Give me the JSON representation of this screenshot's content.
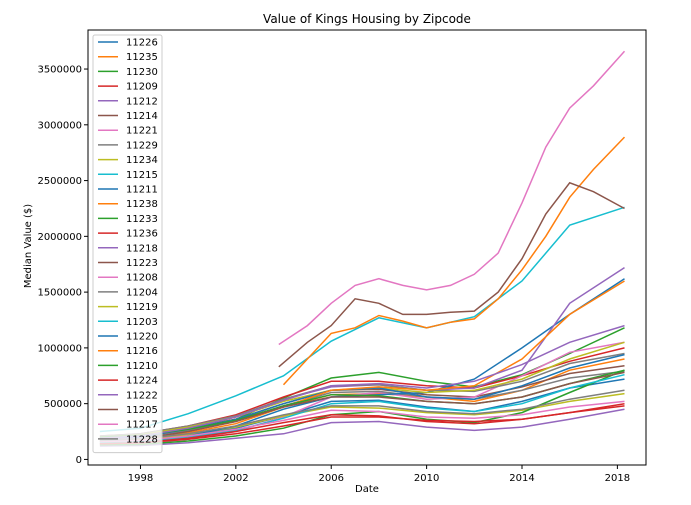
{
  "chart_data": {
    "type": "line",
    "title": "Value of Kings Housing by Zipcode",
    "xlabel": "Date",
    "ylabel": "Median Value ($)",
    "xlim": [
      1995.8,
      2019.2
    ],
    "ylim": [
      -50000,
      3850000
    ],
    "x_ticks": [
      1998,
      2002,
      2006,
      2010,
      2014,
      2018
    ],
    "y_ticks": [
      0,
      500000,
      1000000,
      1500000,
      2000000,
      2500000,
      3000000,
      3500000
    ],
    "legend_position": "upper-left",
    "grid": false,
    "series": [
      {
        "name": "11226",
        "color": "#1f77b4",
        "x": [
          1996.3,
          1998,
          2000,
          2002,
          2004,
          2006,
          2008,
          2010,
          2012,
          2014,
          2016,
          2018.3
        ],
        "y": [
          160000,
          165000,
          210000,
          280000,
          390000,
          520000,
          530000,
          470000,
          430000,
          520000,
          640000,
          720000
        ]
      },
      {
        "name": "11235",
        "color": "#ff7f0e",
        "x": [
          1996.3,
          1998,
          2000,
          2002,
          2004,
          2006,
          2008,
          2010,
          2012,
          2014,
          2016,
          2018.3
        ],
        "y": [
          190000,
          210000,
          290000,
          360000,
          470000,
          580000,
          590000,
          560000,
          520000,
          620000,
          800000,
          900000
        ]
      },
      {
        "name": "11230",
        "color": "#2ca02c",
        "x": [
          1996.3,
          1998,
          2000,
          2002,
          2004,
          2006,
          2008,
          2010,
          2012,
          2014,
          2016,
          2018.3
        ],
        "y": [
          190000,
          210000,
          280000,
          360000,
          550000,
          730000,
          780000,
          700000,
          650000,
          760000,
          950000,
          1180000
        ]
      },
      {
        "name": "11209",
        "color": "#d62728",
        "x": [
          1996.3,
          1998,
          2000,
          2002,
          2004,
          2006,
          2008,
          2010,
          2012,
          2014,
          2016,
          2018.3
        ],
        "y": [
          210000,
          230000,
          300000,
          400000,
          560000,
          700000,
          700000,
          660000,
          640000,
          750000,
          880000,
          1000000
        ]
      },
      {
        "name": "11212",
        "color": "#9467bd",
        "x": [
          1996.3,
          1998,
          2000,
          2002,
          2004,
          2006,
          2008,
          2010,
          2012,
          2014,
          2016,
          2018.3
        ],
        "y": [
          120000,
          125000,
          150000,
          190000,
          230000,
          330000,
          340000,
          290000,
          260000,
          290000,
          360000,
          450000
        ]
      },
      {
        "name": "11214",
        "color": "#8c564b",
        "x": [
          1996.3,
          1998,
          2000,
          2002,
          2004,
          2006,
          2008,
          2010,
          2012,
          2014,
          2016,
          2018.3
        ],
        "y": [
          190000,
          205000,
          270000,
          360000,
          500000,
          620000,
          630000,
          580000,
          560000,
          650000,
          770000,
          840000
        ]
      },
      {
        "name": "11221",
        "color": "#e377c2",
        "x": [
          1996.3,
          1998,
          2000,
          2002,
          2004,
          2006,
          2008,
          2010,
          2012,
          2014,
          2016,
          2018.3
        ],
        "y": [
          130000,
          140000,
          180000,
          250000,
          380000,
          560000,
          600000,
          540000,
          560000,
          750000,
          960000,
          1050000
        ]
      },
      {
        "name": "11229",
        "color": "#7f7f7f",
        "x": [
          1996.3,
          1998,
          2000,
          2002,
          2004,
          2006,
          2008,
          2010,
          2012,
          2014,
          2016,
          2018.3
        ],
        "y": [
          180000,
          200000,
          260000,
          340000,
          480000,
          600000,
          610000,
          560000,
          540000,
          620000,
          730000,
          790000
        ]
      },
      {
        "name": "11234",
        "color": "#bcbd22",
        "x": [
          1996.3,
          1998,
          2000,
          2002,
          2004,
          2006,
          2008,
          2010,
          2012,
          2014,
          2016,
          2018.3
        ],
        "y": [
          160000,
          175000,
          220000,
          290000,
          390000,
          470000,
          460000,
          420000,
          400000,
          440000,
          520000,
          590000
        ]
      },
      {
        "name": "11215",
        "color": "#17becf",
        "x": [
          1996.3,
          1998,
          2000,
          2002,
          2004,
          2006,
          2008,
          2010,
          2012,
          2014,
          2016,
          2018.3
        ],
        "y": [
          250000,
          280000,
          410000,
          570000,
          750000,
          1060000,
          1270000,
          1180000,
          1280000,
          1600000,
          2100000,
          2260000
        ]
      },
      {
        "name": "11211",
        "color": "#1f77b4",
        "x": [
          1996.3,
          1998,
          2000,
          2002,
          2004,
          2006,
          2008,
          2010,
          2012,
          2014,
          2016,
          2018.3
        ],
        "y": [
          140000,
          150000,
          210000,
          300000,
          450000,
          560000,
          580000,
          600000,
          720000,
          1000000,
          1300000,
          1620000
        ]
      },
      {
        "name": "11238",
        "color": "#ff7f0e",
        "x": [
          2004,
          2005,
          2006,
          2007,
          2008,
          2009,
          2010,
          2011,
          2012,
          2013,
          2014,
          2015,
          2016,
          2017,
          2018.3
        ],
        "y": [
          670000,
          900000,
          1130000,
          1180000,
          1290000,
          1240000,
          1180000,
          1230000,
          1260000,
          1440000,
          1700000,
          2000000,
          2350000,
          2600000,
          2890000
        ]
      },
      {
        "name": "11233",
        "color": "#2ca02c",
        "x": [
          1996.3,
          1998,
          2000,
          2002,
          2004,
          2006,
          2008,
          2010,
          2012,
          2014,
          2016,
          2018.3
        ],
        "y": [
          130000,
          135000,
          165000,
          210000,
          280000,
          400000,
          430000,
          360000,
          330000,
          420000,
          600000,
          800000
        ]
      },
      {
        "name": "11236",
        "color": "#d62728",
        "x": [
          1996.3,
          1998,
          2000,
          2002,
          2004,
          2006,
          2008,
          2010,
          2012,
          2014,
          2016,
          2018.3
        ],
        "y": [
          140000,
          150000,
          180000,
          230000,
          300000,
          380000,
          380000,
          350000,
          340000,
          360000,
          420000,
          500000
        ]
      },
      {
        "name": "11218",
        "color": "#9467bd",
        "x": [
          1996.3,
          1998,
          2000,
          2002,
          2004,
          2006,
          2008,
          2010,
          2012,
          2014,
          2016,
          2018.3
        ],
        "y": [
          180000,
          200000,
          280000,
          380000,
          540000,
          650000,
          670000,
          620000,
          640000,
          800000,
          1400000,
          1720000
        ]
      },
      {
        "name": "11223",
        "color": "#8c564b",
        "x": [
          2003.8,
          2005,
          2006,
          2007,
          2008,
          2009,
          2010,
          2011,
          2012,
          2013,
          2014,
          2015,
          2016,
          2017,
          2018.3
        ],
        "y": [
          830000,
          1050000,
          1200000,
          1440000,
          1400000,
          1300000,
          1300000,
          1320000,
          1330000,
          1500000,
          1800000,
          2200000,
          2480000,
          2400000,
          2250000
        ]
      },
      {
        "name": "11208",
        "color": "#e377c2",
        "x": [
          2003.8,
          2005,
          2006,
          2007,
          2008,
          2009,
          2010,
          2011,
          2012,
          2013,
          2014,
          2015,
          2016,
          2017,
          2018.3
        ],
        "y": [
          1030000,
          1200000,
          1400000,
          1560000,
          1620000,
          1560000,
          1520000,
          1560000,
          1660000,
          1850000,
          2300000,
          2800000,
          3150000,
          3350000,
          3660000
        ]
      },
      {
        "name": "11204",
        "color": "#7f7f7f",
        "x": [
          1996.3,
          1998,
          2000,
          2002,
          2004,
          2006,
          2008,
          2010,
          2012,
          2014,
          2016,
          2018.3
        ],
        "y": [
          210000,
          230000,
          300000,
          390000,
          540000,
          660000,
          670000,
          620000,
          610000,
          700000,
          860000,
          950000
        ]
      },
      {
        "name": "11219",
        "color": "#bcbd22",
        "x": [
          1996.3,
          1998,
          2000,
          2002,
          2004,
          2006,
          2008,
          2010,
          2012,
          2014,
          2016,
          2018.3
        ],
        "y": [
          200000,
          220000,
          290000,
          380000,
          520000,
          620000,
          640000,
          600000,
          620000,
          720000,
          900000,
          1050000
        ]
      },
      {
        "name": "11203",
        "color": "#17becf",
        "x": [
          1996.3,
          1998,
          2000,
          2002,
          2004,
          2006,
          2008,
          2010,
          2012,
          2014,
          2016,
          2018.3
        ],
        "y": [
          150000,
          160000,
          200000,
          260000,
          370000,
          500000,
          520000,
          460000,
          430000,
          500000,
          640000,
          760000
        ]
      },
      {
        "name": "11220",
        "color": "#1f77b4",
        "x": [
          1996.3,
          1998,
          2000,
          2002,
          2004,
          2006,
          2008,
          2010,
          2012,
          2014,
          2016,
          2018.3
        ],
        "y": [
          190000,
          205000,
          270000,
          360000,
          500000,
          620000,
          640000,
          560000,
          540000,
          660000,
          820000,
          940000
        ]
      },
      {
        "name": "11216",
        "color": "#ff7f0e",
        "x": [
          1996.3,
          1998,
          2000,
          2002,
          2004,
          2006,
          2008,
          2010,
          2012,
          2014,
          2016,
          2018.3
        ],
        "y": [
          170000,
          180000,
          240000,
          320000,
          470000,
          620000,
          650000,
          620000,
          660000,
          900000,
          1300000,
          1600000
        ]
      },
      {
        "name": "11210",
        "color": "#2ca02c",
        "x": [
          1996.3,
          1998,
          2000,
          2002,
          2004,
          2006,
          2008,
          2010,
          2012,
          2014,
          2016,
          2018.3
        ],
        "y": [
          200000,
          215000,
          270000,
          350000,
          480000,
          580000,
          570000,
          520000,
          500000,
          560000,
          680000,
          800000
        ]
      },
      {
        "name": "11224",
        "color": "#d62728",
        "x": [
          1996.3,
          1998,
          2000,
          2002,
          2004,
          2006,
          2008,
          2010,
          2012,
          2014,
          2016,
          2018.3
        ],
        "y": [
          140000,
          150000,
          190000,
          250000,
          330000,
          400000,
          390000,
          340000,
          320000,
          360000,
          420000,
          480000
        ]
      },
      {
        "name": "11222",
        "color": "#9467bd",
        "x": [
          1996.3,
          1998,
          2000,
          2002,
          2004,
          2006,
          2008,
          2010,
          2012,
          2014,
          2016,
          2018.3
        ],
        "y": [
          190000,
          210000,
          280000,
          380000,
          530000,
          660000,
          680000,
          640000,
          700000,
          850000,
          1050000,
          1200000
        ]
      },
      {
        "name": "11205",
        "color": "#8c564b",
        "x": [
          1996.3,
          1998,
          2000,
          2002,
          2004,
          2006,
          2008,
          2010,
          2012,
          2014,
          2016,
          2018.3
        ],
        "y": [
          170000,
          185000,
          250000,
          340000,
          470000,
          560000,
          560000,
          520000,
          500000,
          560000,
          680000,
          780000
        ]
      },
      {
        "name": "11217",
        "color": "#e377c2",
        "x": [
          1996.3,
          1998,
          2000,
          2002,
          2004,
          2006,
          2008,
          2010,
          2012,
          2014,
          2016,
          2018.3
        ],
        "y": [
          160000,
          170000,
          210000,
          270000,
          350000,
          440000,
          430000,
          380000,
          370000,
          400000,
          470000,
          520000
        ]
      },
      {
        "name": "11228",
        "color": "#7f7f7f",
        "x": [
          1996.3,
          1998,
          2000,
          2002,
          2004,
          2006,
          2008,
          2010,
          2012,
          2014,
          2016,
          2018.3
        ],
        "y": [
          170000,
          185000,
          230000,
          300000,
          400000,
          480000,
          480000,
          430000,
          410000,
          450000,
          540000,
          620000
        ]
      }
    ]
  }
}
